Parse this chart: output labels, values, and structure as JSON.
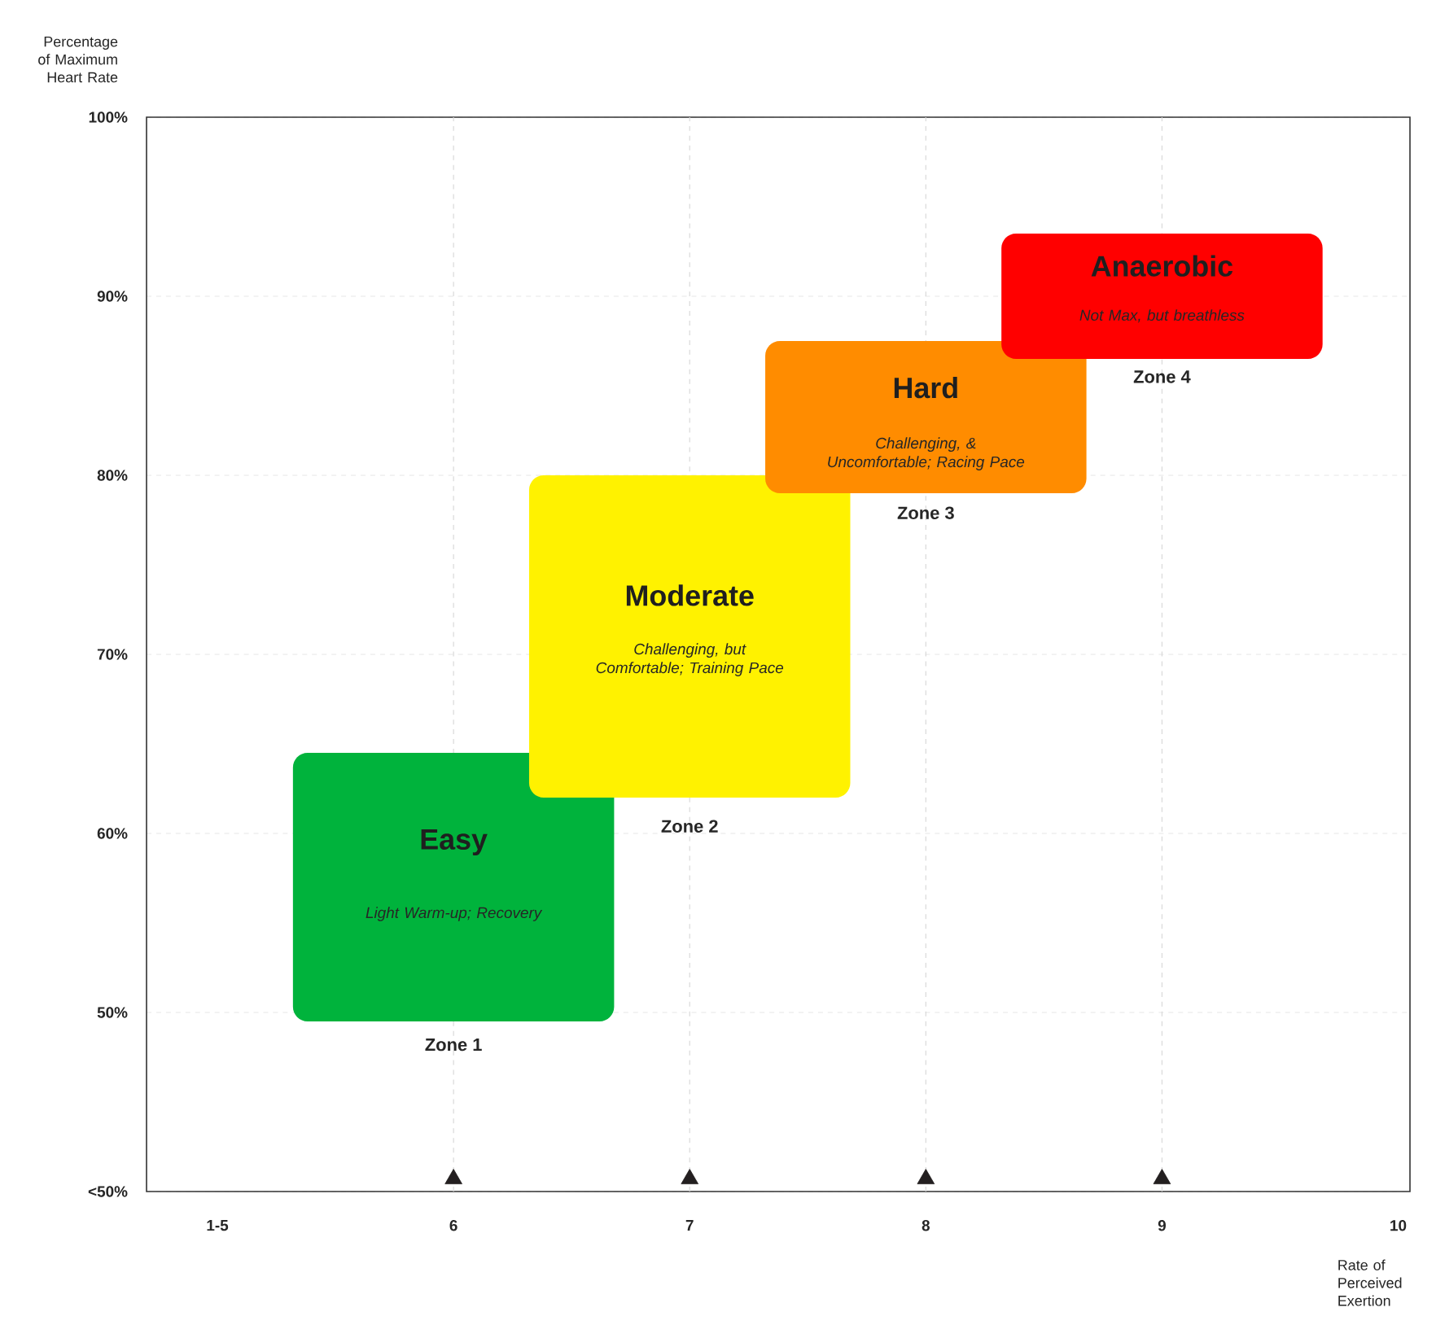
{
  "chart_data": {
    "type": "bar",
    "xlabel": "Rate of Perceived Exertion",
    "ylabel": "Percentage of Maximum Heart Rate",
    "categories": [
      "1-5",
      "6",
      "7",
      "8",
      "9",
      "10"
    ],
    "base": [
      null,
      49.5,
      62,
      79,
      86.5,
      null
    ],
    "values": [
      null,
      15,
      18,
      8.5,
      7,
      null
    ],
    "colors": [
      null,
      "#00b33c",
      "#fff200",
      "#ff8c00",
      "#ff0000",
      null
    ],
    "series": [
      {
        "type": "scatter",
        "x": [
          "6",
          "7",
          "8",
          "9"
        ],
        "values": [
          40.7,
          40.7,
          40.7,
          40.7
        ],
        "color": "#231f20",
        "marker": "triangle"
      }
    ],
    "ylim": [
      40,
      100
    ],
    "yticks": [
      {
        "value": 40,
        "label": "<50%"
      },
      {
        "value": 50,
        "label": "50%"
      },
      {
        "value": 60,
        "label": "60%"
      },
      {
        "value": 70,
        "label": "70%"
      },
      {
        "value": 80,
        "label": "80%"
      },
      {
        "value": 90,
        "label": "90%"
      },
      {
        "value": 100,
        "label": "100%"
      }
    ],
    "grid": "y",
    "ref_lines": [
      {
        "axis": "x",
        "value": "6",
        "color": "#d9d9d9",
        "line_style": "dashed"
      },
      {
        "axis": "x",
        "value": "7",
        "color": "#d9d9d9",
        "line_style": "dashed"
      },
      {
        "axis": "x",
        "value": "8",
        "color": "#d9d9d9",
        "line_style": "dashed"
      },
      {
        "axis": "x",
        "value": "9",
        "color": "#d9d9d9",
        "line_style": "dashed"
      }
    ],
    "annotations": [
      {
        "text": "Easy",
        "x": "6",
        "y": 59.5
      },
      {
        "text": "Light Warm-up; Recovery",
        "x": "6",
        "y": 55.5
      },
      {
        "text": "Zone 1",
        "x": "6",
        "y": 48.2
      },
      {
        "text": "Moderate",
        "x": "7",
        "y": 73.3
      },
      {
        "text": "Challenging, but Comfortable; Training Pace",
        "x": "7",
        "y": 69.7
      },
      {
        "text": "Zone 2",
        "x": "7",
        "y": 60.4
      },
      {
        "text": "Hard",
        "x": "8",
        "y": 84.9
      },
      {
        "text": "Challenging, & Uncomfortable; Racing Pace",
        "x": "8",
        "y": 81.2
      },
      {
        "text": "Zone 3",
        "x": "8",
        "y": 77.9
      },
      {
        "text": "Anaerobic",
        "x": "9",
        "y": 91.7
      },
      {
        "text": "Not Max, but breathless",
        "x": "9",
        "y": 88.9
      },
      {
        "text": "Zone 4",
        "x": "9",
        "y": 85.5
      }
    ]
  }
}
